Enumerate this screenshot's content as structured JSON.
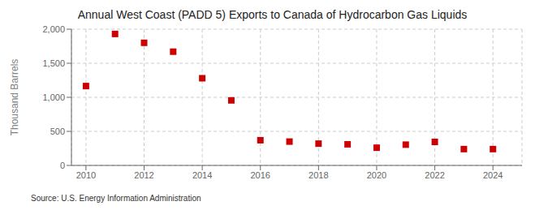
{
  "chart_data": {
    "type": "scatter",
    "title": "Annual West Coast (PADD 5) Exports to Canada of Hydrocarbon Gas Liquids",
    "ylabel": "Thousand Barrels",
    "source": "Source: U.S. Energy Information Administration",
    "x": [
      2010,
      2011,
      2012,
      2013,
      2014,
      2015,
      2016,
      2017,
      2018,
      2019,
      2020,
      2021,
      2022,
      2023,
      2024
    ],
    "values": [
      1165,
      1930,
      1800,
      1670,
      1280,
      955,
      370,
      350,
      320,
      310,
      260,
      305,
      345,
      240,
      240
    ],
    "color": "#cc0000",
    "marker": "square",
    "xlim": [
      2009.5,
      2025.0
    ],
    "xticks": [
      2010,
      2012,
      2014,
      2016,
      2018,
      2020,
      2022,
      2024
    ],
    "ylim": [
      0,
      2000
    ],
    "yticks": [
      0,
      500,
      {
        "value": 1000,
        "label": "1,000"
      },
      {
        "value": 1500,
        "label": "1,500"
      },
      {
        "value": 2000,
        "label": "2,000"
      }
    ],
    "grid": true
  }
}
